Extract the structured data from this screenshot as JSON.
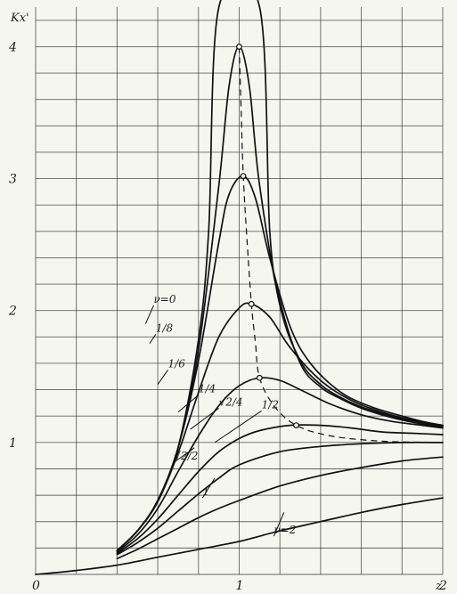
{
  "chart_data": {
    "type": "line",
    "title": "",
    "xlabel": "z",
    "ylabel": "Kx'",
    "xlim": [
      0,
      2.0
    ],
    "ylim": [
      0,
      4.3
    ],
    "x_ticks": [
      {
        "value": 0,
        "label": "0"
      },
      {
        "value": 1,
        "label": "1"
      },
      {
        "value": 2,
        "label": "2"
      }
    ],
    "y_ticks": [
      {
        "value": 1,
        "label": "1"
      },
      {
        "value": 2,
        "label": "2"
      },
      {
        "value": 3,
        "label": "3"
      },
      {
        "value": 4,
        "label": "4"
      }
    ],
    "grid": true,
    "series": [
      {
        "name": "ν=0",
        "label_at": [
          0.58,
          2.06
        ],
        "leader": [
          0.54,
          1.9
        ],
        "points": [
          [
            0.4,
            0.18
          ],
          [
            0.5,
            0.33
          ],
          [
            0.6,
            0.56
          ],
          [
            0.7,
            0.96
          ],
          [
            0.8,
            1.78
          ],
          [
            0.85,
            2.6
          ],
          [
            0.9,
            4.3
          ],
          [
            1.1,
            4.3
          ],
          [
            1.15,
            2.6
          ],
          [
            1.2,
            2.08
          ],
          [
            1.3,
            1.6
          ],
          [
            1.4,
            1.42
          ],
          [
            1.5,
            1.33
          ],
          [
            1.6,
            1.26
          ],
          [
            1.7,
            1.21
          ],
          [
            1.8,
            1.17
          ],
          [
            1.9,
            1.14
          ],
          [
            2.0,
            1.12
          ]
        ]
      },
      {
        "name": "1/8",
        "label_at": [
          0.59,
          1.84
        ],
        "leader": [
          0.56,
          1.75
        ],
        "points": [
          [
            0.4,
            0.18
          ],
          [
            0.5,
            0.33
          ],
          [
            0.6,
            0.56
          ],
          [
            0.7,
            0.96
          ],
          [
            0.8,
            1.7
          ],
          [
            0.9,
            2.95
          ],
          [
            0.95,
            3.7
          ],
          [
            1.0,
            4.0
          ],
          [
            1.05,
            3.7
          ],
          [
            1.1,
            2.95
          ],
          [
            1.2,
            2.04
          ],
          [
            1.3,
            1.62
          ],
          [
            1.4,
            1.44
          ],
          [
            1.5,
            1.34
          ],
          [
            1.6,
            1.27
          ],
          [
            1.7,
            1.22
          ],
          [
            1.8,
            1.18
          ],
          [
            1.9,
            1.15
          ],
          [
            2.0,
            1.12
          ]
        ]
      },
      {
        "name": "1/6",
        "label_at": [
          0.65,
          1.57
        ],
        "leader": [
          0.6,
          1.44
        ],
        "points": [
          [
            0.4,
            0.18
          ],
          [
            0.5,
            0.33
          ],
          [
            0.6,
            0.56
          ],
          [
            0.7,
            0.96
          ],
          [
            0.8,
            1.62
          ],
          [
            0.9,
            2.52
          ],
          [
            0.95,
            2.88
          ],
          [
            1.02,
            3.02
          ],
          [
            1.08,
            2.85
          ],
          [
            1.15,
            2.4
          ],
          [
            1.25,
            1.88
          ],
          [
            1.35,
            1.6
          ],
          [
            1.5,
            1.38
          ],
          [
            1.65,
            1.27
          ],
          [
            1.8,
            1.2
          ],
          [
            1.9,
            1.16
          ],
          [
            2.0,
            1.13
          ]
        ]
      },
      {
        "name": "1/4",
        "label_at": [
          0.8,
          1.38
        ],
        "leader": [
          0.7,
          1.23
        ],
        "points": [
          [
            0.4,
            0.18
          ],
          [
            0.5,
            0.33
          ],
          [
            0.6,
            0.55
          ],
          [
            0.7,
            0.92
          ],
          [
            0.8,
            1.38
          ],
          [
            0.9,
            1.8
          ],
          [
            1.0,
            2.02
          ],
          [
            1.06,
            2.05
          ],
          [
            1.15,
            1.95
          ],
          [
            1.25,
            1.72
          ],
          [
            1.4,
            1.47
          ],
          [
            1.55,
            1.32
          ],
          [
            1.7,
            1.23
          ],
          [
            1.85,
            1.17
          ],
          [
            2.0,
            1.13
          ]
        ]
      },
      {
        "name": "√2/4",
        "label_at": [
          0.9,
          1.28
        ],
        "leader": [
          0.76,
          1.1
        ],
        "points": [
          [
            0.4,
            0.17
          ],
          [
            0.5,
            0.3
          ],
          [
            0.6,
            0.5
          ],
          [
            0.7,
            0.78
          ],
          [
            0.8,
            1.05
          ],
          [
            0.9,
            1.28
          ],
          [
            1.0,
            1.43
          ],
          [
            1.1,
            1.49
          ],
          [
            1.2,
            1.47
          ],
          [
            1.3,
            1.4
          ],
          [
            1.45,
            1.29
          ],
          [
            1.6,
            1.21
          ],
          [
            1.75,
            1.16
          ],
          [
            1.9,
            1.13
          ],
          [
            2.0,
            1.11
          ]
        ]
      },
      {
        "name": "1/2",
        "label_at": [
          1.11,
          1.26
        ],
        "leader": [
          0.88,
          1.0
        ],
        "points": [
          [
            0.4,
            0.16
          ],
          [
            0.5,
            0.27
          ],
          [
            0.6,
            0.42
          ],
          [
            0.7,
            0.6
          ],
          [
            0.8,
            0.78
          ],
          [
            0.9,
            0.93
          ],
          [
            1.0,
            1.03
          ],
          [
            1.1,
            1.09
          ],
          [
            1.25,
            1.13
          ],
          [
            1.4,
            1.13
          ],
          [
            1.55,
            1.11
          ],
          [
            1.7,
            1.08
          ],
          [
            1.85,
            1.07
          ],
          [
            2.0,
            1.06
          ]
        ]
      },
      {
        "name": "√2/2",
        "label_at": [
          0.68,
          0.87
        ],
        "leader": [
          0.78,
          0.96
        ],
        "points": [
          [
            0.4,
            0.15
          ],
          [
            0.5,
            0.24
          ],
          [
            0.6,
            0.35
          ],
          [
            0.7,
            0.48
          ],
          [
            0.8,
            0.61
          ],
          [
            0.9,
            0.73
          ],
          [
            1.0,
            0.83
          ],
          [
            1.2,
            0.93
          ],
          [
            1.4,
            0.97
          ],
          [
            1.6,
            0.99
          ],
          [
            1.8,
            1.0
          ],
          [
            2.0,
            1.0
          ]
        ]
      },
      {
        "name": "1",
        "label_at": [
          0.82,
          0.6
        ],
        "leader": [
          0.88,
          0.73
        ],
        "points": [
          [
            0.4,
            0.12
          ],
          [
            0.5,
            0.19
          ],
          [
            0.6,
            0.27
          ],
          [
            0.7,
            0.35
          ],
          [
            0.8,
            0.43
          ],
          [
            0.9,
            0.5
          ],
          [
            1.0,
            0.56
          ],
          [
            1.2,
            0.67
          ],
          [
            1.4,
            0.75
          ],
          [
            1.6,
            0.81
          ],
          [
            1.8,
            0.86
          ],
          [
            2.0,
            0.89
          ]
        ]
      },
      {
        "name": "ν=2",
        "label_at": [
          1.17,
          0.31
        ],
        "leader": [
          1.22,
          0.47
        ],
        "points": [
          [
            0.0,
            0.0
          ],
          [
            0.2,
            0.03
          ],
          [
            0.4,
            0.07
          ],
          [
            0.6,
            0.13
          ],
          [
            0.8,
            0.19
          ],
          [
            1.0,
            0.25
          ],
          [
            1.2,
            0.33
          ],
          [
            1.4,
            0.4
          ],
          [
            1.6,
            0.47
          ],
          [
            1.8,
            0.53
          ],
          [
            2.0,
            0.58
          ]
        ]
      }
    ],
    "peak_points": [
      [
        1.0,
        4.0
      ],
      [
        1.02,
        3.02
      ],
      [
        1.06,
        2.05
      ],
      [
        1.1,
        1.49
      ],
      [
        1.28,
        1.13
      ]
    ],
    "peak_locus": [
      [
        1.0,
        4.0
      ],
      [
        1.01,
        3.5
      ],
      [
        1.02,
        3.02
      ],
      [
        1.04,
        2.5
      ],
      [
        1.06,
        2.05
      ],
      [
        1.08,
        1.75
      ],
      [
        1.1,
        1.49
      ],
      [
        1.17,
        1.28
      ],
      [
        1.28,
        1.13
      ],
      [
        1.45,
        1.05
      ],
      [
        1.7,
        1.01
      ],
      [
        2.0,
        1.0
      ]
    ]
  }
}
